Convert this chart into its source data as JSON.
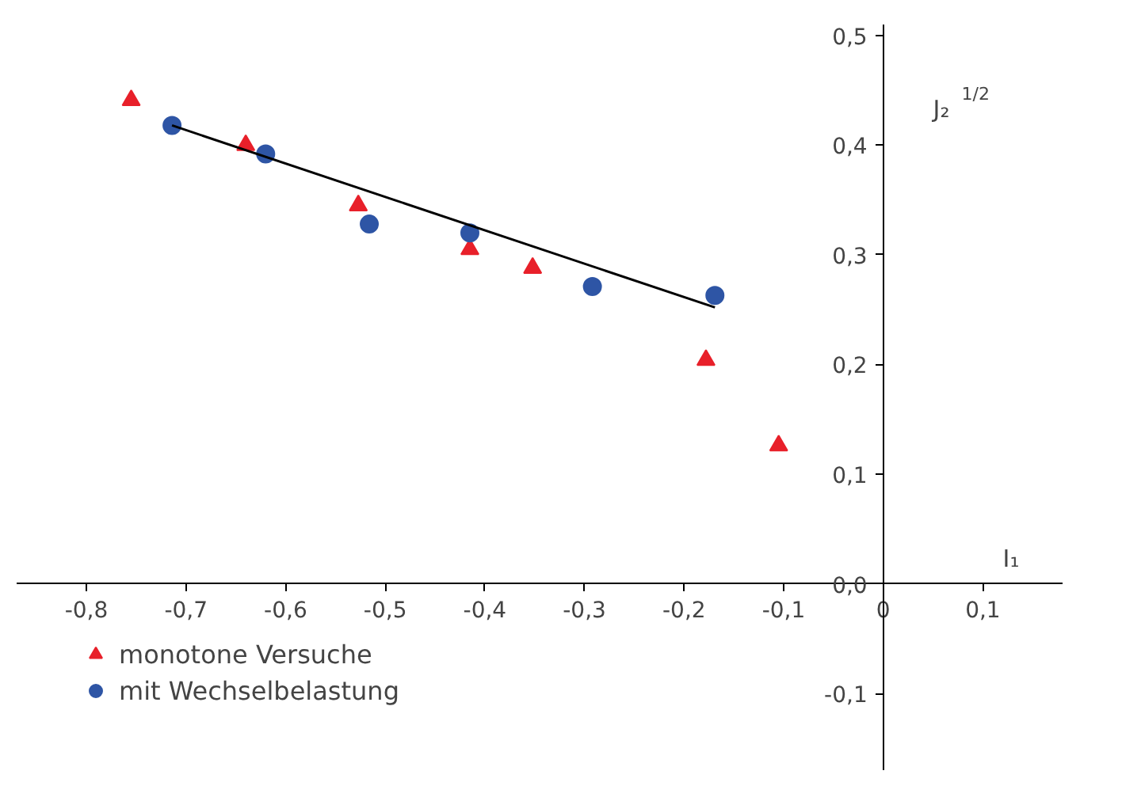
{
  "chart_data": {
    "type": "scatter",
    "xlabel": "I₁",
    "ylabel": "J₂$^{1/2}$",
    "xlim": [
      -0.87,
      0.18
    ],
    "ylim": [
      -0.17,
      0.51
    ],
    "xticks": [
      {
        "value": -0.8,
        "label": "-0,8"
      },
      {
        "value": -0.7,
        "label": "-0,7"
      },
      {
        "value": -0.6,
        "label": "-0,6"
      },
      {
        "value": -0.5,
        "label": "-0,5"
      },
      {
        "value": -0.4,
        "label": "-0,4"
      },
      {
        "value": -0.3,
        "label": "-0,3"
      },
      {
        "value": -0.2,
        "label": "-0,2"
      },
      {
        "value": -0.1,
        "label": "-0,1"
      },
      {
        "value": 0,
        "label": "0"
      },
      {
        "value": 0.1,
        "label": "0,1"
      }
    ],
    "yticks": [
      {
        "value": -0.1,
        "label": "-0,1"
      },
      {
        "value": 0,
        "label": "0,0"
      },
      {
        "value": 0.1,
        "label": "0,1"
      },
      {
        "value": 0.2,
        "label": "0,2"
      },
      {
        "value": 0.3,
        "label": "0,3"
      },
      {
        "value": 0.4,
        "label": "0,4"
      },
      {
        "value": 0.5,
        "label": "0,5"
      }
    ],
    "grid": false,
    "legend": "bottom left",
    "series": [
      {
        "name": "monotone Versuche",
        "color": "#e8202a",
        "marker": "triangle",
        "x": [
          -0.755,
          -0.64,
          -0.527,
          -0.415,
          -0.352,
          -0.178,
          -0.105
        ],
        "values": [
          0.441,
          0.4,
          0.345,
          0.305,
          0.288,
          0.204,
          0.126
        ]
      },
      {
        "name": "mit Wechselbelastung",
        "color": "#2e55a5",
        "marker": "circle",
        "x": [
          -0.714,
          -0.62,
          -0.516,
          -0.415,
          -0.292,
          -0.169
        ],
        "values": [
          0.418,
          0.392,
          0.328,
          0.32,
          0.271,
          0.263
        ]
      },
      {
        "type": "line",
        "color": "#000000",
        "x": [
          -0.714,
          -0.169
        ],
        "values": [
          0.418,
          0.252
        ]
      }
    ]
  }
}
